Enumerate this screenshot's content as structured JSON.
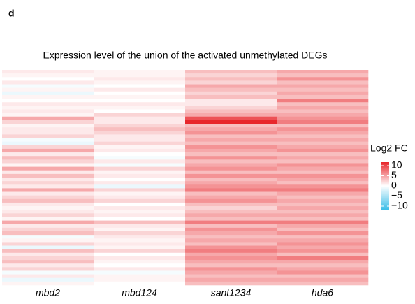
{
  "panel_label": "d",
  "chart_data": {
    "type": "heatmap",
    "title": "Expression level of the union of the activated unmethylated DEGs",
    "columns": [
      "mbd2",
      "mbd124",
      "sant1234",
      "hda6"
    ],
    "values": [
      [
        1,
        0.5,
        3,
        4
      ],
      [
        0.5,
        0.5,
        2,
        3
      ],
      [
        0,
        1,
        3,
        5
      ],
      [
        1,
        0.5,
        2,
        3
      ],
      [
        -0.5,
        0,
        4,
        4
      ],
      [
        0.5,
        1,
        3,
        3
      ],
      [
        -1,
        0,
        2,
        4
      ],
      [
        0.5,
        0.5,
        3,
        3
      ],
      [
        0,
        0,
        1,
        6
      ],
      [
        1,
        1,
        1,
        3
      ],
      [
        0.5,
        0.5,
        2,
        4
      ],
      [
        1,
        0,
        3,
        3
      ],
      [
        0.5,
        2,
        4,
        4
      ],
      [
        4,
        1,
        8,
        5
      ],
      [
        2,
        1,
        10,
        6
      ],
      [
        0.5,
        2,
        3,
        3
      ],
      [
        1,
        3,
        4,
        5
      ],
      [
        1,
        2,
        5,
        4
      ],
      [
        2,
        1,
        3,
        3
      ],
      [
        -0.5,
        1,
        4,
        4
      ],
      [
        -1,
        2,
        3,
        3
      ],
      [
        2,
        0.5,
        5,
        4
      ],
      [
        4,
        1,
        4,
        5
      ],
      [
        1,
        0,
        3,
        3
      ],
      [
        3,
        -0.5,
        5,
        4
      ],
      [
        2,
        1,
        3,
        3
      ],
      [
        0.5,
        -0.5,
        4,
        5
      ],
      [
        4,
        2,
        5,
        4
      ],
      [
        1,
        0.5,
        3,
        3
      ],
      [
        3,
        1,
        5,
        5
      ],
      [
        1,
        0,
        3,
        4
      ],
      [
        2,
        1,
        4,
        3
      ],
      [
        1,
        -1,
        5,
        5
      ],
      [
        4,
        2,
        6,
        6
      ],
      [
        1,
        0.5,
        3,
        4
      ],
      [
        2,
        1,
        4,
        3
      ],
      [
        3,
        2,
        5,
        4
      ],
      [
        1,
        0,
        3,
        3
      ],
      [
        0.5,
        1,
        2,
        4
      ],
      [
        1,
        0.5,
        3,
        3
      ],
      [
        2,
        1,
        4,
        4
      ],
      [
        0.5,
        0,
        3,
        3
      ],
      [
        4,
        3,
        6,
        6
      ],
      [
        1,
        1,
        3,
        4
      ],
      [
        2,
        0.5,
        5,
        3
      ],
      [
        3,
        2,
        4,
        5
      ],
      [
        -0.5,
        1,
        3,
        3
      ],
      [
        0.5,
        0.5,
        4,
        4
      ],
      [
        2,
        1,
        3,
        5
      ],
      [
        -1,
        0.5,
        5,
        4
      ],
      [
        3,
        2,
        6,
        5
      ],
      [
        1,
        0,
        4,
        3
      ],
      [
        2,
        1,
        5,
        6
      ],
      [
        3,
        0.5,
        4,
        4
      ],
      [
        1,
        0,
        3,
        3
      ],
      [
        2,
        1,
        5,
        4
      ],
      [
        -0.5,
        -0.5,
        4,
        5
      ],
      [
        1,
        0.5,
        3,
        3
      ],
      [
        -1,
        0.5,
        4,
        4
      ],
      [
        0.5,
        0,
        3,
        3
      ]
    ],
    "legend_title": "Log2 FC",
    "zlim": [
      -10,
      10
    ],
    "zticks": [
      10,
      5,
      0,
      {
        "value": -5,
        "label": "−5"
      },
      {
        "value": -10,
        "label": "−10"
      }
    ],
    "colors": {
      "low": "#3bbde8",
      "mid": "#ffffff",
      "high": "#e8262b"
    }
  }
}
